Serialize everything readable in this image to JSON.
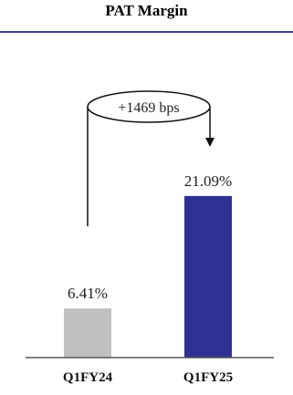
{
  "chart_data": {
    "type": "bar",
    "title": "PAT Margin",
    "categories": [
      "Q1FY24",
      "Q1FY25"
    ],
    "values": [
      6.41,
      21.09
    ],
    "data_labels": [
      "6.41%",
      "21.09%"
    ],
    "unit": "%",
    "ylim": [
      0,
      30
    ],
    "grid": false,
    "colors": [
      "#c0c0c0",
      "#2e3192"
    ],
    "annotation": {
      "text": "+1469 bps",
      "from": "Q1FY24",
      "to": "Q1FY25"
    }
  }
}
